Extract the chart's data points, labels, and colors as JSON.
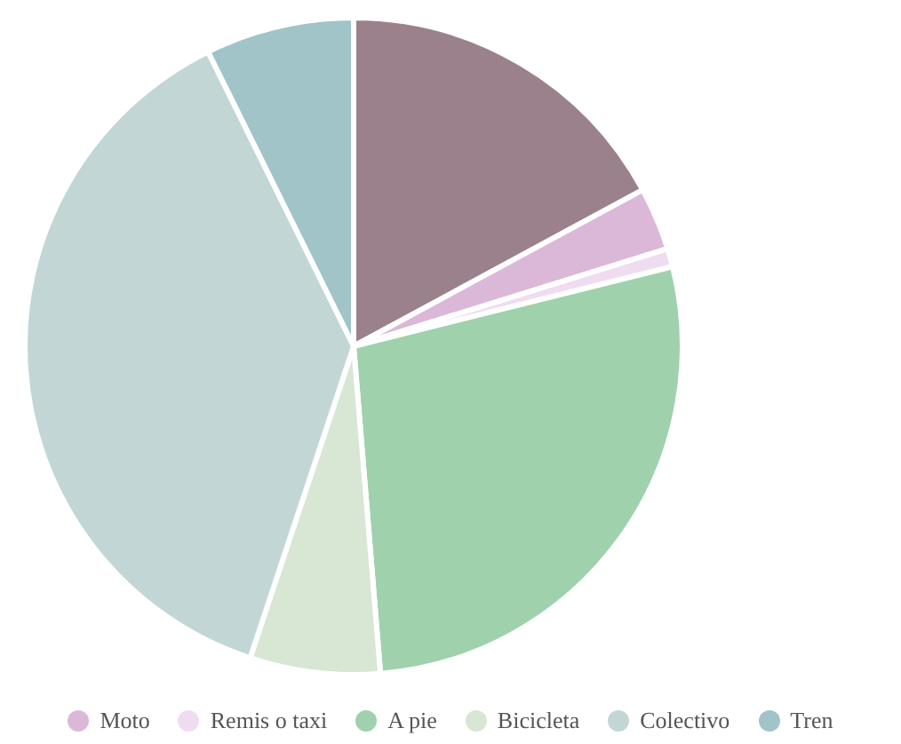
{
  "chart_data": {
    "type": "pie",
    "categories": [
      null,
      "Moto",
      "Remis o taxi",
      "A pie",
      "Bicicleta",
      "Colectivo",
      "Tren"
    ],
    "values": [
      17.1,
      3.1,
      0.9,
      27.6,
      6.4,
      37.6,
      7.3
    ],
    "colors": [
      "#9b818b",
      "#dcb8d8",
      "#f0dcf0",
      "#9fd1ad",
      "#d8e6d4",
      "#c2d6d6",
      "#a0c4c8"
    ],
    "legend": "bottom"
  }
}
